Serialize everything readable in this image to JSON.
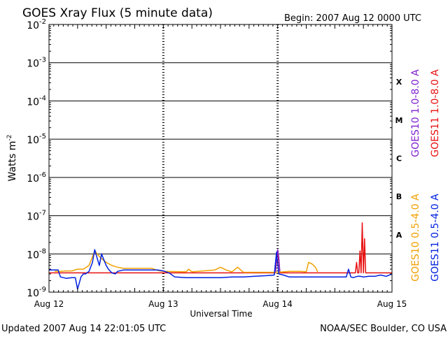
{
  "chart_data": {
    "type": "line",
    "title": "GOES Xray Flux (5 minute data)",
    "begin_label": "Begin:  2007 Aug 12 0000 UTC",
    "xlabel": "Universal Time",
    "ylabel": "Watts m",
    "ylabel_sup": "-2",
    "y_scale": "log",
    "ylim": [
      1e-09,
      0.01
    ],
    "xlim": [
      0,
      3
    ],
    "x_ticks": [
      {
        "value": 0,
        "label": "Aug 12"
      },
      {
        "value": 1,
        "label": "Aug 13"
      },
      {
        "value": 2,
        "label": "Aug 14"
      },
      {
        "value": 3,
        "label": "Aug 15"
      }
    ],
    "y_ticks": [
      {
        "exp": -2,
        "base": "10",
        "sup": "-2"
      },
      {
        "exp": -3,
        "base": "10",
        "sup": "-3"
      },
      {
        "exp": -4,
        "base": "10",
        "sup": "-4"
      },
      {
        "exp": -5,
        "base": "10",
        "sup": "-5"
      },
      {
        "exp": -6,
        "base": "10",
        "sup": "-6"
      },
      {
        "exp": -7,
        "base": "10",
        "sup": "-7"
      },
      {
        "exp": -8,
        "base": "10",
        "sup": "-8"
      },
      {
        "exp": -9,
        "base": "10",
        "sup": "-9"
      }
    ],
    "class_labels": [
      {
        "label": "X",
        "exp": -3.5
      },
      {
        "label": "M",
        "exp": -4.5
      },
      {
        "label": "C",
        "exp": -5.5
      },
      {
        "label": "B",
        "exp": -6.5
      },
      {
        "label": "A",
        "exp": -7.5
      }
    ],
    "grid": true,
    "legend_position": "right",
    "legend": [
      {
        "name": "GOES10 1.0-8.0 A",
        "color": "#8020d0"
      },
      {
        "name": "GOES11 1.0-8.0 A",
        "color": "#e81010"
      },
      {
        "name": "GOES10 0.5-4.0 A",
        "color": "#f0a000"
      },
      {
        "name": "GOES11 0.5-4.0 A",
        "color": "#0020e0"
      }
    ],
    "series": [
      {
        "name": "GOES11 1.0-8.0 A",
        "color": "#e81010",
        "x": [
          0,
          0.5,
          1.0,
          1.5,
          1.98,
          2.0,
          2.02,
          2.5,
          2.68,
          2.69,
          2.7,
          2.71,
          2.72,
          2.73,
          2.74,
          2.75,
          2.76,
          2.77,
          2.78,
          3.0
        ],
        "y": [
          3.2e-09,
          3.2e-09,
          3.2e-09,
          3.2e-09,
          3.2e-09,
          1.2e-08,
          3.2e-09,
          3.2e-09,
          3.2e-09,
          6e-09,
          3.2e-09,
          3.2e-09,
          1.2e-08,
          3.2e-09,
          6.5e-08,
          3.2e-09,
          2.5e-08,
          3.2e-09,
          3.2e-09,
          3.2e-09
        ]
      },
      {
        "name": "GOES10 1.0-8.0 A",
        "color": "#8020d0",
        "x": [
          1.98,
          1.99,
          2.0,
          2.01,
          2.02
        ],
        "y": [
          3.2e-09,
          8e-09,
          1.3e-08,
          8e-09,
          3.2e-09
        ]
      },
      {
        "name": "GOES10 0.5-4.0 A",
        "color": "#f0a000",
        "x": [
          0.05,
          0.1,
          0.15,
          0.2,
          0.25,
          0.3,
          0.35,
          0.4,
          0.45,
          0.5,
          0.55,
          0.6,
          0.65,
          0.7,
          0.75,
          0.8,
          0.85,
          0.9,
          0.95,
          1.0,
          1.2,
          1.22,
          1.25,
          1.35,
          1.45,
          1.5,
          1.55,
          1.6,
          1.65,
          1.7,
          2.0,
          2.1,
          2.2,
          2.25,
          2.27,
          2.3,
          2.33,
          2.35
        ],
        "y": [
          3.5e-09,
          3.5e-09,
          3.6e-09,
          3.6e-09,
          4e-09,
          4e-09,
          5e-09,
          1.2e-08,
          8e-09,
          6e-09,
          5e-09,
          4.5e-09,
          4.2e-09,
          4.2e-09,
          4.2e-09,
          4.2e-09,
          4.2e-09,
          4.2e-09,
          3.7e-09,
          3.5e-09,
          3.4e-09,
          4e-09,
          3.4e-09,
          3.6e-09,
          3.8e-09,
          4.5e-09,
          3.8e-09,
          3.4e-09,
          4.5e-09,
          3.3e-09,
          3.3e-09,
          3.5e-09,
          3.5e-09,
          3.4e-09,
          6e-09,
          5.5e-09,
          4.5e-09,
          3.4e-09
        ]
      },
      {
        "name": "GOES11 0.5-4.0 A",
        "color": "#0020e0",
        "x": [
          0.0,
          0.08,
          0.1,
          0.15,
          0.2,
          0.23,
          0.25,
          0.28,
          0.3,
          0.32,
          0.35,
          0.38,
          0.4,
          0.42,
          0.44,
          0.46,
          0.48,
          0.5,
          0.52,
          0.55,
          0.58,
          0.6,
          0.65,
          0.7,
          0.8,
          0.9,
          0.95,
          1.0,
          1.05,
          1.1,
          1.2,
          1.4,
          1.5,
          1.6,
          1.7,
          1.8,
          1.9,
          1.97,
          1.99,
          2.01,
          2.05,
          2.1,
          2.2,
          2.3,
          2.4,
          2.5,
          2.6,
          2.62,
          2.64,
          2.66,
          2.68,
          2.7,
          2.72,
          2.75,
          2.8,
          2.85,
          2.9,
          2.95,
          3.0
        ],
        "y": [
          3.8e-09,
          3.8e-09,
          2.5e-09,
          2.3e-09,
          2.4e-09,
          2.4e-09,
          1.2e-09,
          2.5e-09,
          3e-09,
          3e-09,
          3.5e-09,
          6e-09,
          1.3e-08,
          8e-09,
          5e-09,
          1e-08,
          7e-09,
          5e-09,
          4e-09,
          3.2e-09,
          3e-09,
          3.5e-09,
          3.8e-09,
          3.8e-09,
          3.8e-09,
          3.8e-09,
          3.8e-09,
          3.6e-09,
          3.2e-09,
          2.5e-09,
          2.4e-09,
          2.4e-09,
          2.4e-09,
          2.5e-09,
          2.5e-09,
          2.6e-09,
          2.7e-09,
          2.8e-09,
          1.1e-08,
          3e-09,
          2.8e-09,
          2.5e-09,
          2.5e-09,
          2.5e-09,
          2.5e-09,
          2.5e-09,
          2.5e-09,
          4e-09,
          2.5e-09,
          2.4e-09,
          2.5e-09,
          2.6e-09,
          2.6e-09,
          2.5e-09,
          2.6e-09,
          2.6e-09,
          2.8e-09,
          2.6e-09,
          3e-09
        ]
      }
    ]
  },
  "footer": {
    "updated": "Updated 2007 Aug 14 22:01:05 UTC",
    "credit": "NOAA/SEC Boulder, CO USA"
  }
}
